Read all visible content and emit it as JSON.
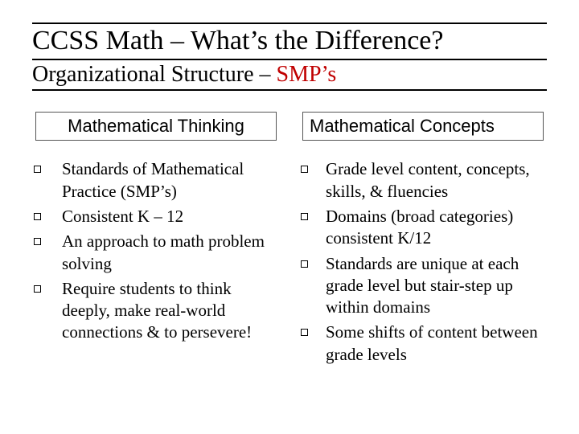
{
  "colors": {
    "accent": "#c00000",
    "text": "#000000",
    "background": "#ffffff",
    "box_border": "#555555",
    "rule": "#000000"
  },
  "fonts": {
    "serif": "Times New Roman, Times, serif",
    "sans": "Arial, Helvetica, sans-serif",
    "title_size_pt": 26,
    "subtitle_size_pt": 21,
    "header_size_pt": 17,
    "body_size_pt": 16
  },
  "title": {
    "main": "CCSS Math",
    "separator": " – ",
    "sub": "What’s the Difference?"
  },
  "subtitle": {
    "prefix": "Organizational Structure – ",
    "accent_text": "SMP’s"
  },
  "columns": {
    "left": {
      "header": "Mathematical Thinking",
      "items": [
        "Standards of Mathematical Practice (SMP’s)",
        "Consistent K – 12",
        "An approach to math problem solving",
        "Require students to think deeply, make real-world connections & to persevere!"
      ]
    },
    "right": {
      "header": "Mathematical Concepts",
      "items": [
        "Grade level content, concepts, skills, & fluencies",
        "Domains (broad categories) consistent K/12",
        "Standards are unique at each grade level but stair-step up within domains",
        "Some shifts of content between grade levels"
      ]
    }
  }
}
